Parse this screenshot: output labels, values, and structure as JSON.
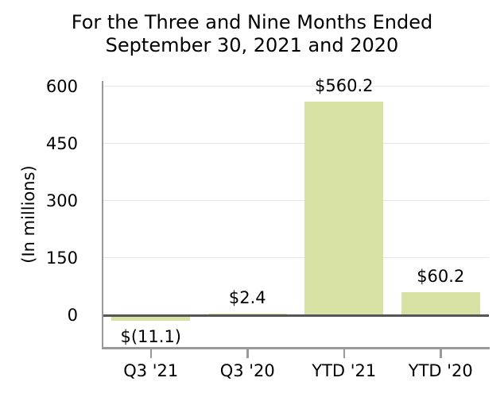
{
  "title": {
    "line1": "For the Three and Nine Months Ended",
    "line2": "September 30, 2021 and 2020"
  },
  "y_axis": {
    "label": "(In millions)"
  },
  "chart_data": {
    "type": "bar",
    "title": "For the Three and Nine Months Ended September 30, 2021 and 2020",
    "categories": [
      "Q3 '21",
      "Q3 '20",
      "YTD '21",
      "YTD '20"
    ],
    "values": [
      -11.1,
      2.4,
      560.2,
      60.2
    ],
    "data_labels": [
      "$(11.1)",
      "$2.4",
      "$560.2",
      "$60.2"
    ],
    "xlabel": "",
    "ylabel": "(In millions)",
    "yticks": [
      0,
      150,
      300,
      450,
      600
    ],
    "ylim": [
      -85,
      610
    ],
    "grid": true,
    "legend": false,
    "bar_color": "#d8e1a4"
  },
  "colors": {
    "bar": "#d8e1a4",
    "zero_line": "#555555",
    "grid": "#e7e7e7",
    "axis": "#999999",
    "text": "#000000",
    "background": "#ffffff"
  }
}
